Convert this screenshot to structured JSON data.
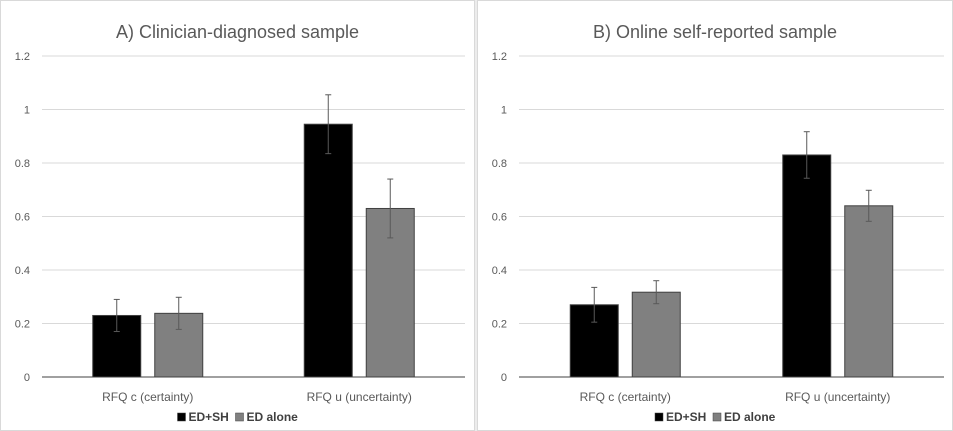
{
  "chart_data": [
    {
      "type": "bar",
      "title": "A) Clinician-diagnosed sample",
      "categories": [
        "RFQ c (certainty)",
        "RFQ u (uncertainty)"
      ],
      "series": [
        {
          "name": "ED+SH",
          "values": [
            0.23,
            0.945
          ],
          "errors": [
            0.06,
            0.11
          ],
          "color": "#000000"
        },
        {
          "name": "ED alone",
          "values": [
            0.238,
            0.63
          ],
          "errors": [
            0.06,
            0.11
          ],
          "color": "#808080"
        }
      ],
      "yticks": [
        "0",
        "0.2",
        "0.4",
        "0.6",
        "0.8",
        "1",
        "1.2"
      ],
      "ylim": [
        0,
        1.2
      ],
      "grid": true,
      "legend": "bottom"
    },
    {
      "type": "bar",
      "title": "B) Online  self-reported sample",
      "categories": [
        "RFQ c (certainty)",
        "RFQ u (uncertainty)"
      ],
      "series": [
        {
          "name": "ED+SH",
          "values": [
            0.27,
            0.83
          ],
          "errors": [
            0.065,
            0.087
          ],
          "color": "#000000"
        },
        {
          "name": "ED alone",
          "values": [
            0.317,
            0.64
          ],
          "errors": [
            0.043,
            0.058
          ],
          "color": "#808080"
        }
      ],
      "yticks": [
        "0",
        "0.2",
        "0.4",
        "0.6",
        "0.8",
        "1",
        "1.2"
      ],
      "ylim": [
        0,
        1.2
      ],
      "grid": true,
      "legend": "bottom"
    }
  ]
}
